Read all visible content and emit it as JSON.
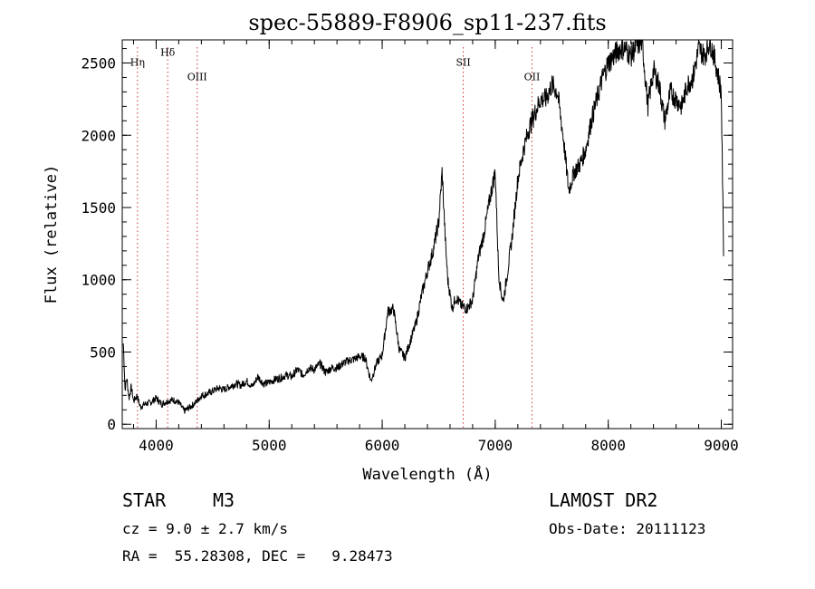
{
  "chart_data": {
    "type": "line",
    "title": "spec-55889-F8906_sp11-237.fits",
    "xlabel": "Wavelength (Å)",
    "ylabel": "Flux (relative)",
    "xlim": [
      3700,
      9100
    ],
    "ylim": [
      -30,
      2660
    ],
    "grid": false,
    "x_ticks": [
      4000,
      5000,
      6000,
      7000,
      8000,
      9000
    ],
    "y_ticks": [
      0,
      500,
      1000,
      1500,
      2000,
      2500
    ],
    "lines": [
      {
        "label": "Hη",
        "x": 3835,
        "label_flux": 2480
      },
      {
        "label": "Hδ",
        "x": 4102,
        "label_flux": 2550
      },
      {
        "label": "OIII",
        "x": 4363,
        "label_flux": 2380
      },
      {
        "label": "SII",
        "x": 6717,
        "label_flux": 2480
      },
      {
        "label": "OII",
        "x": 7325,
        "label_flux": 2380
      }
    ],
    "series": [
      {
        "x": [
          3710,
          3725,
          3740,
          3760,
          3780,
          3800,
          3830,
          3860,
          3900,
          3950,
          4000,
          4050,
          4100,
          4150,
          4200,
          4250,
          4300,
          4350,
          4400,
          4450,
          4500,
          4550,
          4600,
          4650,
          4700,
          4750,
          4800,
          4850,
          4900,
          4950,
          5000,
          5050,
          5100,
          5150,
          5200,
          5250,
          5300,
          5350,
          5400,
          5450,
          5500,
          5550,
          5600,
          5650,
          5700,
          5750,
          5800,
          5850,
          5900,
          5950,
          6000,
          6050,
          6100,
          6150,
          6200,
          6250,
          6300,
          6350,
          6400,
          6450,
          6500,
          6530,
          6560,
          6580,
          6600,
          6620,
          6650,
          6700,
          6750,
          6800,
          6850,
          6900,
          6950,
          7000,
          7030,
          7050,
          7070,
          7100,
          7150,
          7200,
          7250,
          7300,
          7350,
          7400,
          7450,
          7500,
          7550,
          7600,
          7650,
          7700,
          7750,
          7800,
          7850,
          7900,
          7950,
          8000,
          8050,
          8100,
          8150,
          8200,
          8250,
          8300,
          8350,
          8400,
          8450,
          8500,
          8550,
          8600,
          8650,
          8700,
          8750,
          8800,
          8850,
          8900,
          8950,
          9000,
          9020
        ],
        "y": [
          560,
          240,
          320,
          180,
          260,
          160,
          200,
          120,
          140,
          150,
          180,
          140,
          160,
          170,
          150,
          90,
          120,
          150,
          200,
          210,
          230,
          250,
          240,
          260,
          280,
          270,
          300,
          260,
          330,
          280,
          290,
          310,
          320,
          340,
          330,
          380,
          340,
          390,
          380,
          420,
          360,
          390,
          390,
          420,
          440,
          450,
          470,
          460,
          300,
          420,
          480,
          780,
          800,
          520,
          460,
          580,
          700,
          900,
          1060,
          1200,
          1400,
          1750,
          1250,
          1000,
          900,
          800,
          880,
          820,
          800,
          860,
          1150,
          1320,
          1550,
          1750,
          1050,
          920,
          850,
          1000,
          1300,
          1700,
          1900,
          2050,
          2150,
          2250,
          2250,
          2350,
          2300,
          2000,
          1620,
          1750,
          1800,
          1900,
          2100,
          2250,
          2400,
          2500,
          2550,
          2600,
          2600,
          2550,
          2620,
          2650,
          2200,
          2450,
          2350,
          2100,
          2300,
          2250,
          2200,
          2350,
          2400,
          2600,
          2550,
          2650,
          2500,
          2300,
          1200
        ]
      }
    ]
  },
  "info": {
    "object_class": "STAR",
    "subclass": "M3",
    "cz": "cz = 9.0 ± 2.7 km/s",
    "coords": "RA =  55.28308, DEC =   9.28473",
    "survey": "LAMOST DR2",
    "obs_date": "Obs-Date: 20111123"
  }
}
